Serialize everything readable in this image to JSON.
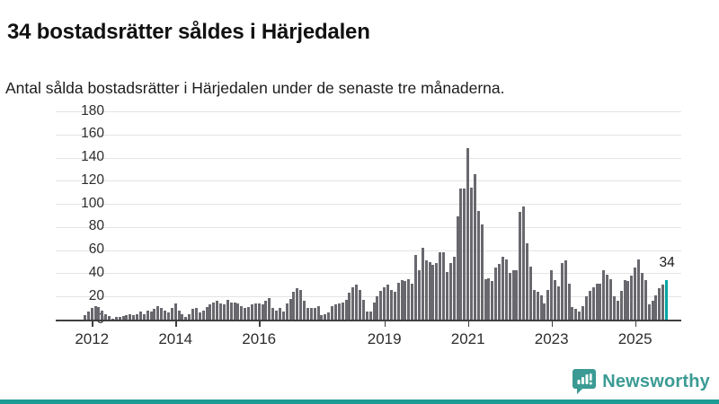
{
  "header": {
    "title": "34 bostadsrätter såldes i Härjedalen",
    "subtitle": "Antal sålda bostadsrätter i Härjedalen under de senaste tre månaderna."
  },
  "chart_data": {
    "type": "bar",
    "title": "34 bostadsrätter såldes i Härjedalen",
    "xlabel": "",
    "ylabel": "",
    "ylim": [
      0,
      180
    ],
    "y_ticks": [
      0,
      20,
      40,
      60,
      80,
      100,
      120,
      140,
      160,
      180
    ],
    "grid": true,
    "start_month": "2011-11",
    "end_month": "2025-10",
    "frequency": "monthly",
    "values": [
      4,
      7,
      10,
      12,
      11,
      8,
      5,
      3,
      1,
      2,
      2,
      3,
      4,
      5,
      4,
      5,
      7,
      5,
      8,
      7,
      9,
      12,
      10,
      8,
      6,
      10,
      14,
      8,
      5,
      2,
      5,
      9,
      10,
      6,
      8,
      11,
      13,
      15,
      16,
      14,
      13,
      17,
      15,
      15,
      14,
      12,
      10,
      11,
      13,
      14,
      14,
      13,
      16,
      19,
      10,
      8,
      10,
      7,
      14,
      18,
      24,
      27,
      26,
      16,
      10,
      10,
      10,
      12,
      4,
      5,
      6,
      12,
      13,
      14,
      15,
      17,
      23,
      28,
      30,
      26,
      17,
      7,
      7,
      15,
      20,
      25,
      28,
      30,
      26,
      24,
      32,
      34,
      33,
      35,
      31,
      56,
      43,
      62,
      51,
      50,
      47,
      49,
      58,
      58,
      41,
      49,
      54,
      89,
      113,
      113,
      148,
      114,
      126,
      94,
      82,
      35,
      36,
      33,
      45,
      48,
      54,
      52,
      40,
      43,
      43,
      93,
      98,
      66,
      46,
      26,
      24,
      21,
      14,
      26,
      43,
      34,
      29,
      49,
      51,
      31,
      11,
      9,
      7,
      12,
      20,
      25,
      28,
      31,
      31,
      43,
      39,
      35,
      20,
      16,
      25,
      34,
      33,
      38,
      45,
      52,
      40,
      34,
      13,
      16,
      21,
      27,
      30,
      34
    ],
    "x_ticks": [
      {
        "label": "2012",
        "monthIndex": 2
      },
      {
        "label": "2014",
        "monthIndex": 26
      },
      {
        "label": "2016",
        "monthIndex": 50
      },
      {
        "label": "2019",
        "monthIndex": 86
      },
      {
        "label": "2021",
        "monthIndex": 110
      },
      {
        "label": "2023",
        "monthIndex": 134
      },
      {
        "label": "2025",
        "monthIndex": 158
      }
    ],
    "highlight": {
      "index": 167,
      "value": 34,
      "label": "34"
    },
    "colors": {
      "bar": "#68686e",
      "highlight": "#00a7a3",
      "gridline": "#e4e4e4",
      "axis": "#3f3f3f"
    },
    "legend_position": "none"
  },
  "footer": {
    "brand": "Newsworthy",
    "brand_color": "#3b9b94",
    "logo_icon": "newsworthy-speech-bubble-chart-icon"
  }
}
